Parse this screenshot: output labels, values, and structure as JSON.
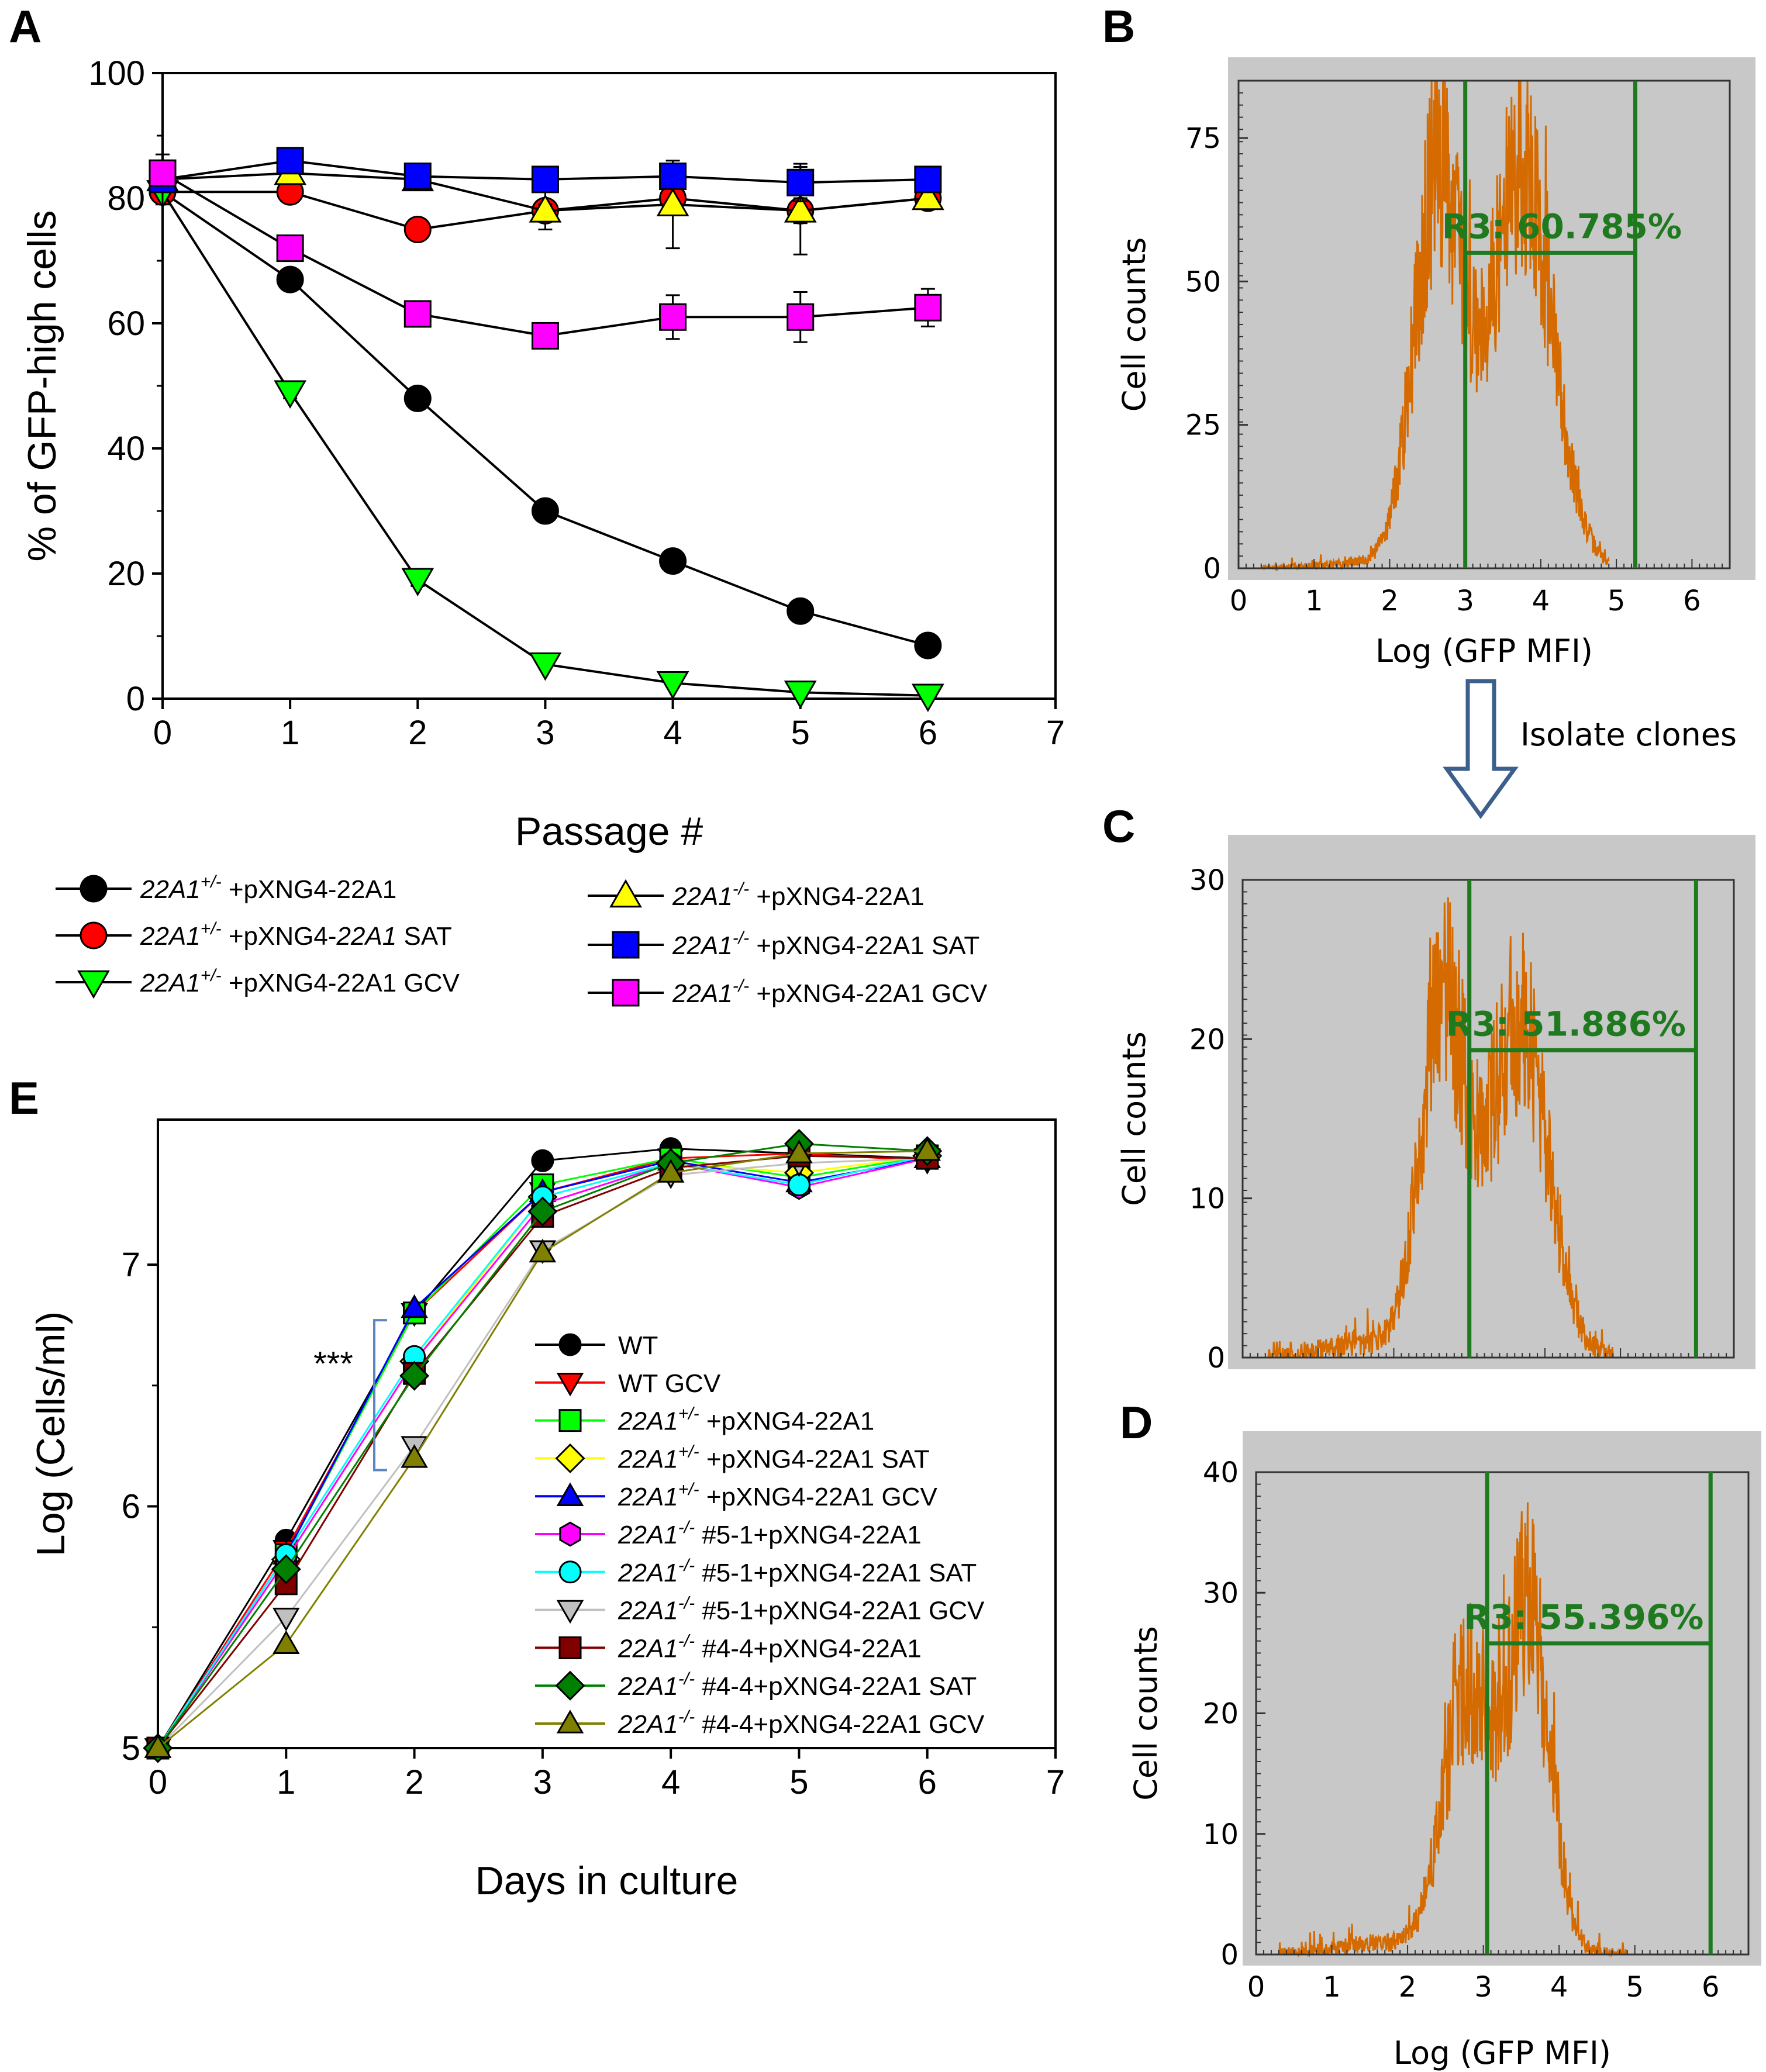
{
  "panels": {
    "A": {
      "letter": "A"
    },
    "B": {
      "letter": "B"
    },
    "C": {
      "letter": "C"
    },
    "D": {
      "letter": "D"
    },
    "E": {
      "letter": "E"
    }
  },
  "isolate_text": "Isolate clones",
  "colors": {
    "black": "#000000",
    "red": "#ff0000",
    "green": "#00ff00",
    "yellow": "#ffff00",
    "blue": "#0000ff",
    "magenta": "#ff00ff",
    "cyan": "#00ffff",
    "gray": "#c0c0c0",
    "darkred": "#800000",
    "darkgreen": "#008000",
    "olive": "#808000",
    "hist": "#d46a00",
    "gatecolor": "#1f7a1f",
    "flowbg": "#c8c8c8"
  },
  "chart_data": [
    {
      "id": "A",
      "type": "line",
      "xlabel": "Passage #",
      "ylabel": "% of GFP-high cells",
      "xlim": [
        0,
        7
      ],
      "ylim": [
        0,
        100
      ],
      "xticks": [
        "0",
        "1",
        "2",
        "3",
        "4",
        "5",
        "6",
        "7"
      ],
      "yticks": [
        "0",
        "20",
        "40",
        "60",
        "80",
        "100"
      ],
      "x": [
        0,
        1,
        2,
        3,
        4,
        5,
        6
      ],
      "series": [
        {
          "name": "22A1+/- +pXNG4-22A1",
          "gene": "22A1",
          "sup": "+/-",
          "rest": " +pXNG4-22A1",
          "color": "black",
          "marker": "circle",
          "values": [
            81,
            67,
            48,
            30,
            22,
            14,
            8.5
          ],
          "err": [
            0,
            1,
            1,
            1,
            1.5,
            1.5,
            0.5
          ]
        },
        {
          "name": "22A1+/- +pXNG4-22A1 SAT",
          "gene": "22A1",
          "sup": "+/-",
          "rest": " +pXNG4-",
          "rest_it": "22A1",
          "rest2": " SAT",
          "color": "red",
          "marker": "circle",
          "values": [
            81,
            81,
            75,
            78,
            80,
            78,
            80
          ],
          "err": [
            0,
            1,
            1,
            3,
            1.5,
            2,
            1
          ]
        },
        {
          "name": "22A1+/- +pXNG4-22A1 GCV",
          "gene": "22A1",
          "sup": "+/-",
          "rest": " +pXNG4-22A1 GCV",
          "color": "green",
          "marker": "tri-down",
          "values": [
            81,
            49,
            19,
            5.5,
            2.5,
            1,
            0.5
          ],
          "err": [
            0,
            1,
            1,
            0.5,
            0.5,
            0.3,
            0.2
          ]
        },
        {
          "name": "22A1-/- +pXNG4-22A1",
          "gene": "22A1",
          "sup": "-/-",
          "rest": " +pXNG4-22A1",
          "color": "yellow",
          "marker": "tri-up",
          "values": [
            83,
            84,
            83,
            78,
            79,
            78,
            80
          ],
          "err": [
            4,
            1,
            1,
            1,
            7,
            7,
            1
          ]
        },
        {
          "name": "22A1-/- +pXNG4-22A1 SAT",
          "gene": "22A1",
          "sup": "-/-",
          "rest": " +pXNG4-22A1 SAT",
          "color": "blue",
          "marker": "square",
          "values": [
            83,
            86,
            83.5,
            83,
            83.5,
            82.5,
            83
          ],
          "err": [
            1,
            1,
            1,
            1,
            2,
            3,
            2
          ]
        },
        {
          "name": "22A1-/- +pXNG4-22A1 GCV",
          "gene": "22A1",
          "sup": "-/-",
          "rest": " +pXNG4-22A1 GCV",
          "color": "magenta",
          "marker": "square",
          "values": [
            84,
            72,
            61.5,
            58,
            61,
            61,
            62.5
          ],
          "err": [
            1,
            2,
            1,
            1,
            3.5,
            4,
            3
          ]
        }
      ]
    },
    {
      "id": "B",
      "type": "histogram",
      "xlabel": "Log (GFP MFI)",
      "ylabel": "Cell counts",
      "xlim": [
        0,
        6.5
      ],
      "ylim": [
        0,
        85
      ],
      "xticks": [
        "0",
        "1",
        "2",
        "3",
        "4",
        "5",
        "6"
      ],
      "yticks": [
        {
          "v": 0,
          "t": "0"
        },
        {
          "v": 25,
          "t": "25"
        },
        {
          "v": 50,
          "t": "50"
        },
        {
          "v": 75,
          "t": "75"
        }
      ],
      "gate": {
        "label": "R3: 60.785%",
        "x1": 3.0,
        "x2": 5.25,
        "y": 55
      },
      "peaks": [
        {
          "mu": 2.65,
          "sd": 0.32,
          "h": 68
        },
        {
          "mu": 3.75,
          "sd": 0.4,
          "h": 70
        }
      ],
      "seed": 7
    },
    {
      "id": "C",
      "type": "histogram",
      "xlabel": "",
      "ylabel": "Cell counts",
      "xlim": [
        0,
        6.5
      ],
      "ylim": [
        0,
        30
      ],
      "xticks": [],
      "yticks": [
        {
          "v": 0,
          "t": "0"
        },
        {
          "v": 10,
          "t": "10"
        },
        {
          "v": 20,
          "t": "20"
        },
        {
          "v": 30,
          "t": "30"
        }
      ],
      "gate": {
        "label": "R3: 51.886%",
        "x1": 3.0,
        "x2": 6.0,
        "y": 19.3
      },
      "peaks": [
        {
          "mu": 2.65,
          "sd": 0.3,
          "h": 22
        },
        {
          "mu": 3.65,
          "sd": 0.38,
          "h": 21
        }
      ],
      "seed": 21
    },
    {
      "id": "D",
      "type": "histogram",
      "xlabel": "Log (GFP MFI)",
      "ylabel": "Cell counts",
      "xlim": [
        0,
        6.5
      ],
      "ylim": [
        0,
        40
      ],
      "xticks": [
        "0",
        "1",
        "2",
        "3",
        "4",
        "5",
        "6"
      ],
      "yticks": [
        {
          "v": 0,
          "t": "0"
        },
        {
          "v": 10,
          "t": "10"
        },
        {
          "v": 20,
          "t": "20"
        },
        {
          "v": 30,
          "t": "30"
        },
        {
          "v": 40,
          "t": "40"
        }
      ],
      "gate": {
        "label": "R3: 55.396%",
        "x1": 3.05,
        "x2": 6.0,
        "y": 25.8
      },
      "peaks": [
        {
          "mu": 2.8,
          "sd": 0.32,
          "h": 22
        },
        {
          "mu": 3.6,
          "sd": 0.28,
          "h": 28
        }
      ],
      "seed": 42
    },
    {
      "id": "E",
      "type": "line",
      "xlabel": "Days in culture",
      "ylabel": "Log (Cells/ml)",
      "xlim": [
        0,
        7
      ],
      "ylim": [
        5,
        7.6
      ],
      "xticks": [
        "0",
        "1",
        "2",
        "3",
        "4",
        "5",
        "6",
        "7"
      ],
      "yticks": [
        {
          "v": 5,
          "t": "5"
        },
        {
          "v": 6,
          "t": "6"
        },
        {
          "v": 7,
          "t": "7"
        }
      ],
      "x": [
        0,
        1,
        2,
        3,
        4,
        5,
        6
      ],
      "annotation": "***",
      "series": [
        {
          "name": "WT",
          "gene": "",
          "sup": "",
          "rest": "WT",
          "color": "black",
          "marker": "circle",
          "values": [
            5,
            5.86,
            6.8,
            7.43,
            7.48,
            7.46,
            7.44
          ]
        },
        {
          "name": "WT GCV",
          "gene": "",
          "sup": "",
          "rest": "WT GCV",
          "color": "red",
          "marker": "tri-down",
          "values": [
            5,
            5.82,
            6.8,
            7.3,
            7.44,
            7.46,
            7.43
          ]
        },
        {
          "name": "22A1+/- +pXNG4-22A1",
          "gene": "22A1",
          "sup": "+/-",
          "rest": " +pXNG4-22A1",
          "color": "green",
          "marker": "square",
          "values": [
            5,
            5.8,
            6.8,
            7.33,
            7.44,
            7.36,
            7.45
          ]
        },
        {
          "name": "22A1+/- +pXNG4-22A1 SAT",
          "gene": "22A1",
          "sup": "+/-",
          "rest": " +pXNG4-22A1 SAT",
          "color": "yellow",
          "marker": "diamond",
          "values": [
            5,
            5.78,
            6.6,
            7.28,
            7.42,
            7.38,
            7.45
          ]
        },
        {
          "name": "22A1+/- +pXNG4-22A1 GCV",
          "gene": "22A1",
          "sup": "+/-",
          "rest": " +pXNG4-22A1 GCV",
          "color": "blue",
          "marker": "tri-up",
          "values": [
            5,
            5.8,
            6.82,
            7.3,
            7.43,
            7.34,
            7.44
          ]
        },
        {
          "name": "22A1-/- #5-1+pXNG4-22A1",
          "gene": "22A1",
          "sup": "-/-",
          "rest": " #5-1+pXNG4-22A1",
          "color": "magenta",
          "marker": "hexagon",
          "values": [
            5,
            5.78,
            6.6,
            7.25,
            7.42,
            7.32,
            7.44
          ]
        },
        {
          "name": "22A1-/- #5-1+pXNG4-22A1 SAT",
          "gene": "22A1",
          "sup": "-/-",
          "rest": " #5-1+pXNG4-22A1 SAT",
          "color": "cyan",
          "marker": "circle",
          "values": [
            5,
            5.8,
            6.62,
            7.28,
            7.42,
            7.33,
            7.45
          ]
        },
        {
          "name": "22A1-/- #5-1+pXNG4-22A1 GCV",
          "gene": "22A1",
          "sup": "-/-",
          "rest": " #5-1+pXNG4-22A1 GCV",
          "color": "gray",
          "marker": "tri-down",
          "values": [
            5,
            5.54,
            6.25,
            7.06,
            7.37,
            7.42,
            7.44
          ]
        },
        {
          "name": "22A1-/- #4-4+pXNG4-22A1",
          "gene": "22A1",
          "sup": "-/-",
          "rest": " #4-4+pXNG4-22A1",
          "color": "darkred",
          "marker": "square",
          "values": [
            5,
            5.68,
            6.55,
            7.2,
            7.4,
            7.45,
            7.44
          ]
        },
        {
          "name": "22A1-/- #4-4+pXNG4-22A1 SAT",
          "gene": "22A1",
          "sup": "-/-",
          "rest": " #4-4+pXNG4-22A1 SAT",
          "color": "darkgreen",
          "marker": "diamond",
          "values": [
            5,
            5.74,
            6.54,
            7.22,
            7.42,
            7.5,
            7.47
          ]
        },
        {
          "name": "22A1-/- #4-4+pXNG4-22A1 GCV",
          "gene": "22A1",
          "sup": "-/-",
          "rest": " #4-4+pXNG4-22A1 GCV",
          "color": "olive",
          "marker": "tri-up",
          "values": [
            5,
            5.43,
            6.2,
            7.05,
            7.38,
            7.46,
            7.47
          ]
        }
      ]
    }
  ]
}
